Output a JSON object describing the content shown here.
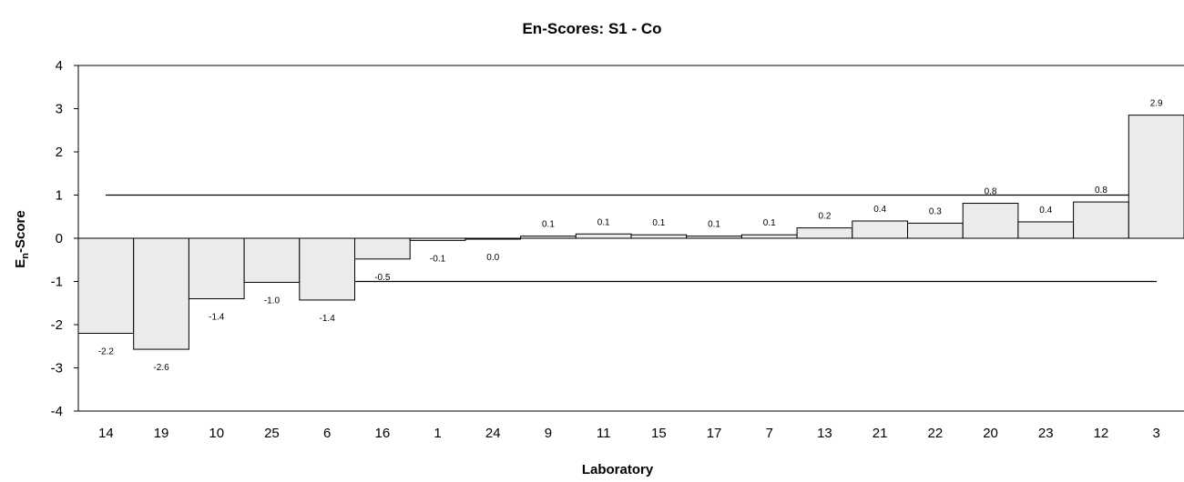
{
  "chart_data": {
    "type": "bar",
    "title": "En-Scores: S1 - Co",
    "xlabel": "Laboratory",
    "ylabel_main": "E",
    "ylabel_sub": "n",
    "ylabel_rest": "-Score",
    "ylim": [
      -4,
      4
    ],
    "yticks": [
      4,
      3,
      2,
      1,
      0,
      -1,
      -2,
      -3,
      -4
    ],
    "reference_lines": [
      1,
      -1
    ],
    "grid": false,
    "legend": "none",
    "categories": [
      "14",
      "19",
      "10",
      "25",
      "6",
      "16",
      "1",
      "24",
      "9",
      "11",
      "15",
      "17",
      "7",
      "13",
      "21",
      "22",
      "20",
      "23",
      "12",
      "3"
    ],
    "values": [
      -2.2,
      -2.57,
      -1.4,
      -1.02,
      -1.43,
      -0.48,
      -0.05,
      -0.02,
      0.05,
      0.1,
      0.08,
      0.05,
      0.08,
      0.24,
      0.4,
      0.35,
      0.81,
      0.38,
      0.84,
      2.85
    ],
    "data_labels": [
      "-2.2",
      "-2.6",
      "-1.4",
      "-1.0",
      "-1.4",
      "-0.5",
      "-0.1",
      "0.0",
      "0.1",
      "0.1",
      "0.1",
      "0.1",
      "0.1",
      "0.2",
      "0.4",
      "0.3",
      "0.8",
      "0.4",
      "0.8",
      "2.9"
    ],
    "colors": {
      "bar_fill": "#ebebeb",
      "bar_stroke": "#000000"
    }
  }
}
